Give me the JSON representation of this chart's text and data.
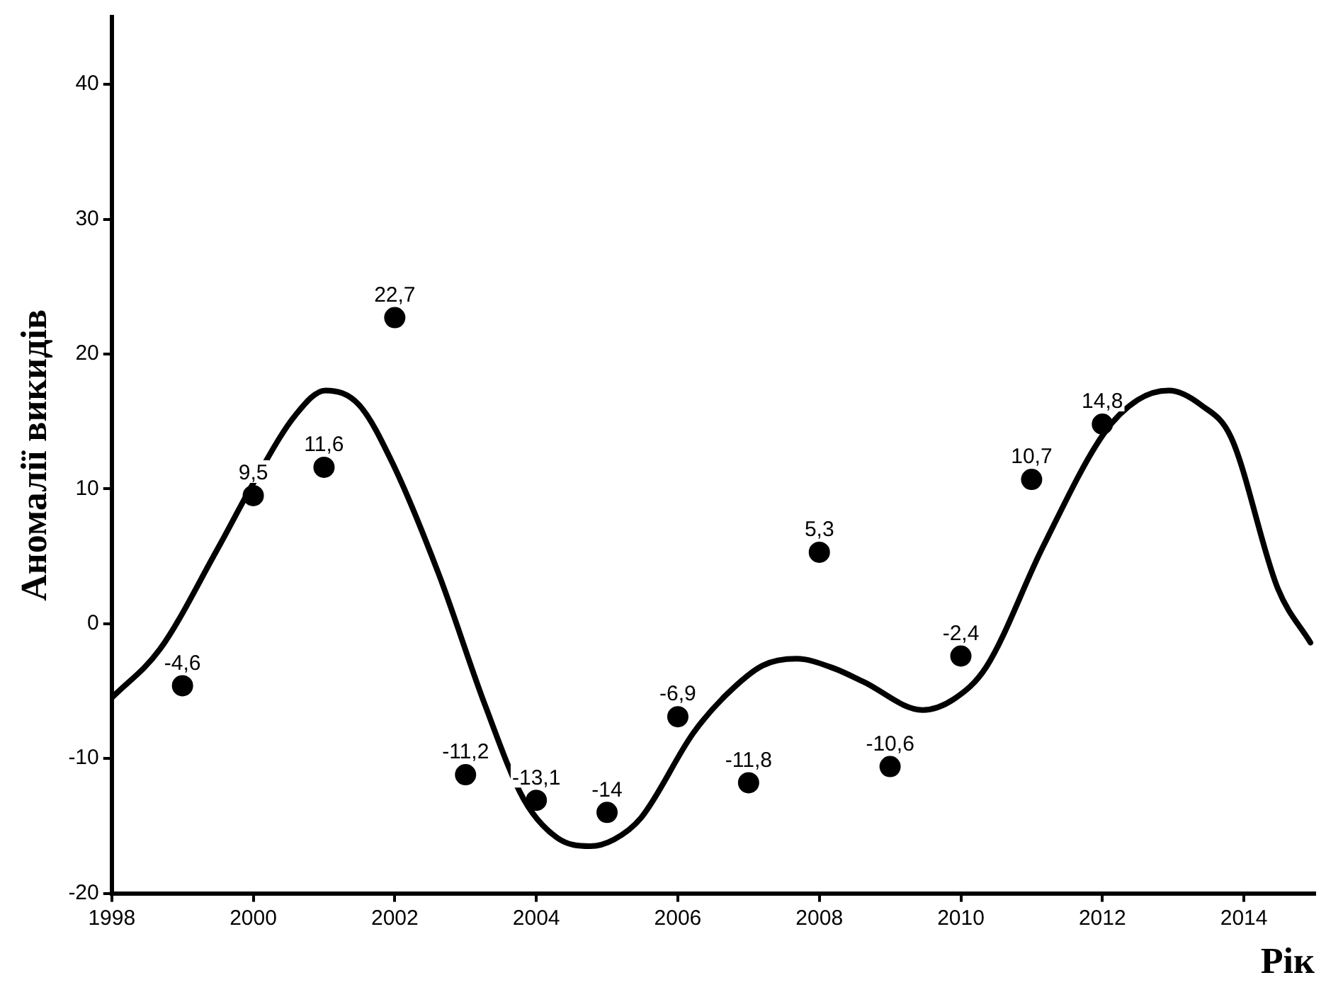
{
  "chart_data": {
    "type": "scatter",
    "xlabel": "Рік",
    "ylabel": "Аномалії викидів",
    "xlim": [
      1998,
      2015
    ],
    "ylim": [
      -20,
      45
    ],
    "xticks": [
      1998,
      2000,
      2002,
      2004,
      2006,
      2008,
      2010,
      2012,
      2014
    ],
    "yticks": [
      -20,
      -10,
      0,
      10,
      20,
      30,
      40
    ],
    "series": [
      {
        "type": "line",
        "color": "#000000",
        "marker": "none",
        "line_style": "solid",
        "x": [
          1998.0,
          1998.68,
          1999.48,
          2000.02,
          2000.6,
          2001.02,
          2001.5,
          2001.96,
          2002.62,
          2003.28,
          2003.82,
          2004.3,
          2004.76,
          2005.1,
          2005.48,
          2006.22,
          2006.68,
          2007.2,
          2007.68,
          2008.2,
          2008.62,
          2009.46,
          2009.9,
          2010.36,
          2011.16,
          2012.02,
          2012.5,
          2012.94,
          2013.4,
          2013.82,
          2014.48,
          2014.94
        ],
        "values": [
          -5.5,
          -1.9,
          5.4,
          10.6,
          15.5,
          17.3,
          16.2,
          12.0,
          3.7,
          -6.1,
          -13.0,
          -15.9,
          -16.5,
          -16.0,
          -14.4,
          -8.1,
          -5.3,
          -3.1,
          -2.6,
          -3.3,
          -4.3,
          -6.4,
          -5.6,
          -3.2,
          5.7,
          14.1,
          16.6,
          17.3,
          16.2,
          13.8,
          2.6,
          -1.4
        ]
      },
      {
        "type": "scatter",
        "color": "#000000",
        "marker": "circle",
        "x": [
          1999,
          2000,
          2001,
          2002,
          2003,
          2004,
          2005,
          2006,
          2007,
          2008,
          2009,
          2010,
          2011,
          2012
        ],
        "values": [
          -4.6,
          9.5,
          11.6,
          22.7,
          -11.2,
          -13.1,
          -14,
          -6.9,
          -11.8,
          5.3,
          -10.6,
          -2.4,
          10.7,
          14.8
        ],
        "value_labels": [
          "-4,6",
          "9,5",
          "11,6",
          "22,7",
          "-11,2",
          "-13,1",
          "-14",
          "-6,9",
          "-11,8",
          "5,3",
          "-10,6",
          "-2,4",
          "10,7",
          "14,8"
        ]
      }
    ]
  }
}
